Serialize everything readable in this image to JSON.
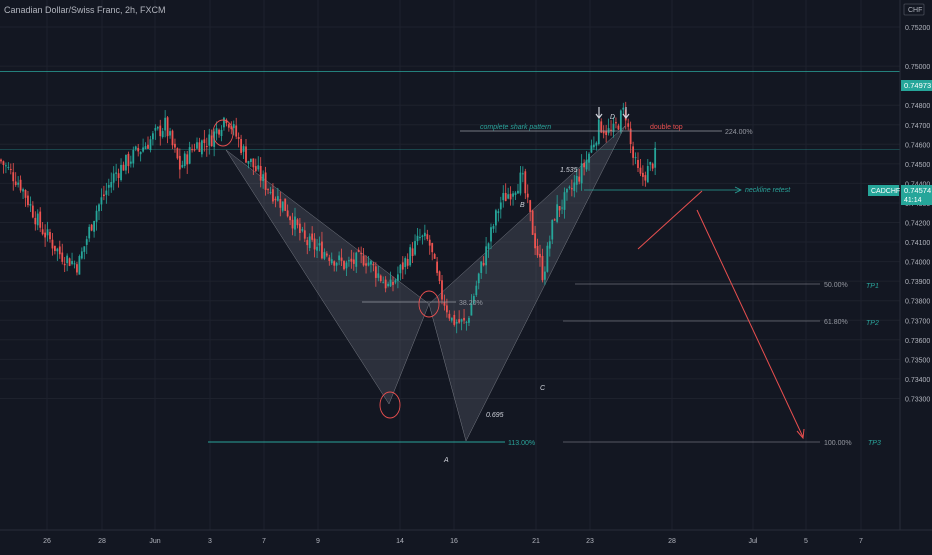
{
  "header": {
    "title": "Canadian Dollar/Swiss Franc, 2h, FXCM"
  },
  "price_axis": {
    "currency": "CHF",
    "labels": [
      "0.75200",
      "0.75000",
      "0.74800",
      "0.74700",
      "0.74600",
      "0.74500",
      "0.74400",
      "0.74300",
      "0.74200",
      "0.74100",
      "0.74000",
      "0.73900",
      "0.73800",
      "0.73700",
      "0.73600",
      "0.73500",
      "0.73400",
      "0.73300"
    ],
    "badge_level": "0.74973",
    "symbol_badge": "CADCHF",
    "price_badge": "0.74574",
    "countdown_badge": "41:14"
  },
  "time_axis": {
    "labels": [
      "26",
      "28",
      "Jun",
      "3",
      "7",
      "9",
      "14",
      "16",
      "21",
      "23",
      "28",
      "Jul",
      "5",
      "7"
    ]
  },
  "colors": {
    "background": "#131722",
    "up": "#26a69a",
    "down": "#ef5350",
    "teal_line": "#2aa39a",
    "pattern_fill": "#8a8f9a",
    "annotation": "#e84f4f",
    "text": "#b2b5be"
  },
  "chart_data": {
    "type": "candlestick",
    "symbol": "CADCHF",
    "timeframe": "2h",
    "ylim": [
      0.733,
      0.7525
    ],
    "x_tick_labels": [
      "26",
      "28",
      "Jun",
      "3",
      "7",
      "9",
      "14",
      "16",
      "21",
      "23",
      "28",
      "Jul",
      "5",
      "7"
    ],
    "price_levels": {
      "resistance": 0.74973,
      "neckline": 0.74574,
      "pattern_low": 0.7362,
      "tp1": 0.7422,
      "tp2": 0.7407,
      "tp3": 0.7363
    },
    "pattern_points": [
      {
        "label": "X",
        "price": 0.7477
      },
      {
        "label": "A",
        "price": 0.7362
      },
      {
        "label": "B",
        "price": 0.7447
      },
      {
        "label": "C",
        "price": 0.7388
      },
      {
        "label": "D",
        "price": 0.748
      }
    ],
    "annotations": {
      "complete_shark": "complete shark pattern",
      "double_top": "double top",
      "neckline_retest": "neckline retest",
      "fib_224": "224.00%",
      "fib_38": "38.20%",
      "fib_113": "113.00%",
      "fib_50": "50.00%",
      "fib_618": "61.80%",
      "fib_100": "100.00%",
      "ratio_1535": "1.535",
      "ratio_0695": "0.695",
      "tp1": "TP1",
      "tp2": "TP2",
      "tp3": "TP3",
      "label_a": "A",
      "label_b": "B",
      "label_c": "C",
      "label_d": "D"
    }
  }
}
